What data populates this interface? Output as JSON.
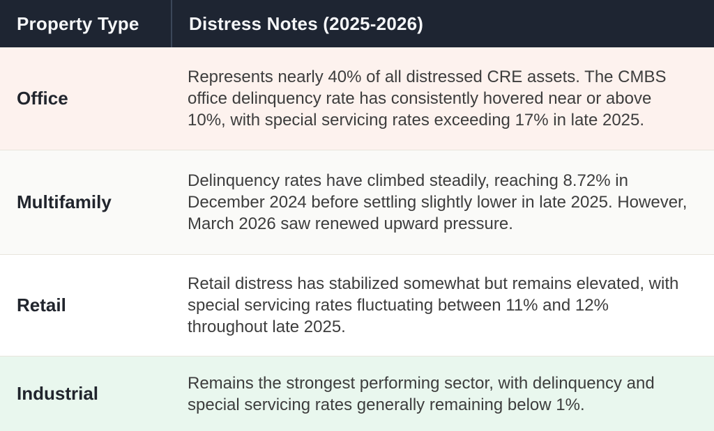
{
  "table": {
    "columns": [
      {
        "label": "Property Type"
      },
      {
        "label": "Distress Notes (2025-2026)"
      }
    ],
    "rows": [
      {
        "property_type": "Office",
        "note": "Represents nearly 40% of all distressed CRE assets. The CMBS office delinquency rate has consistently hovered near or above 10%, with special servicing rates exceeding 17% in late 2025.",
        "bg": "#fdf2ee"
      },
      {
        "property_type": "Multifamily",
        "note": "Delinquency rates have climbed steadily, reaching 8.72% in December 2024 before settling slightly lower in late 2025. However, March 2026 saw renewed upward pressure.",
        "bg": "#fafaf8"
      },
      {
        "property_type": "Retail",
        "note": "Retail distress has stabilized somewhat but remains elevated, with special servicing rates fluctuating between 11% and 12% throughout late 2025.",
        "bg": "#ffffff"
      },
      {
        "property_type": "Industrial",
        "note": "Remains the strongest performing sector, with delinquency and special servicing rates generally remaining below 1%.",
        "bg": "#e9f7ee"
      }
    ],
    "colors": {
      "header_bg": "#1e2532",
      "header_text": "#f5f6f8",
      "header_divider": "#3b4759",
      "row_separator": "#e8e4dc",
      "label_text": "#21252d",
      "note_text": "#3d3d3d"
    }
  }
}
